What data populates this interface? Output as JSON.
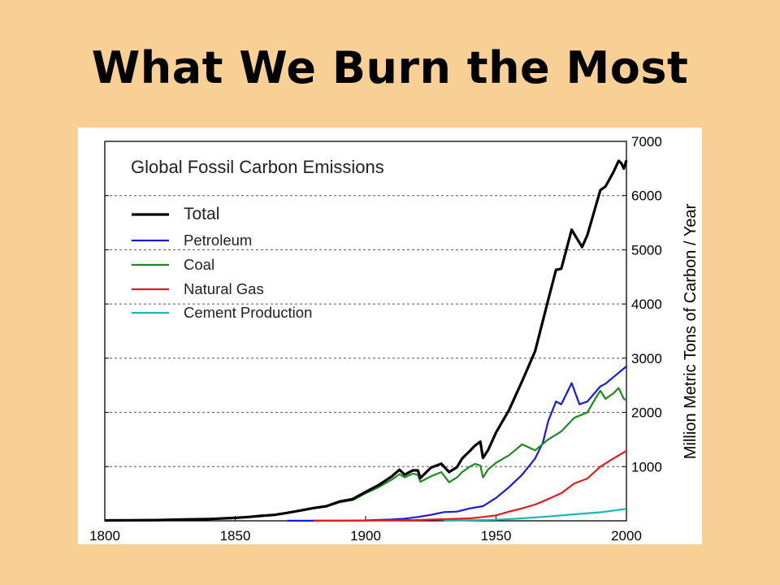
{
  "slide": {
    "title": "What We Burn the Most",
    "background_color": "#f8d095"
  },
  "chart_data": {
    "type": "line",
    "title": "Global Fossil Carbon Emissions",
    "xlabel": "",
    "ylabel": "Million Metric Tons of Carbon / Year",
    "xlim": [
      1800,
      2000
    ],
    "ylim": [
      0,
      7000
    ],
    "x_ticks": [
      1800,
      1850,
      1900,
      1950,
      2000
    ],
    "y_ticks": [
      1000,
      2000,
      3000,
      4000,
      5000,
      6000,
      7000
    ],
    "y_axis_side": "right",
    "grid": "horizontal dashed",
    "legend_position": "top-left",
    "series": [
      {
        "name": "Total",
        "color": "#000000",
        "points": [
          [
            1800,
            8
          ],
          [
            1810,
            10
          ],
          [
            1820,
            14
          ],
          [
            1830,
            24
          ],
          [
            1840,
            33
          ],
          [
            1850,
            54
          ],
          [
            1855,
            70
          ],
          [
            1860,
            91
          ],
          [
            1865,
            110
          ],
          [
            1870,
            147
          ],
          [
            1875,
            190
          ],
          [
            1880,
            236
          ],
          [
            1885,
            270
          ],
          [
            1890,
            356
          ],
          [
            1895,
            400
          ],
          [
            1900,
            534
          ],
          [
            1905,
            660
          ],
          [
            1910,
            819
          ],
          [
            1913,
            943
          ],
          [
            1915,
            850
          ],
          [
            1918,
            930
          ],
          [
            1920,
            932
          ],
          [
            1921,
            790
          ],
          [
            1925,
            980
          ],
          [
            1929,
            1053
          ],
          [
            1932,
            900
          ],
          [
            1935,
            990
          ],
          [
            1937,
            1150
          ],
          [
            1940,
            1290
          ],
          [
            1942,
            1390
          ],
          [
            1944,
            1460
          ],
          [
            1945,
            1160
          ],
          [
            1947,
            1310
          ],
          [
            1950,
            1630
          ],
          [
            1955,
            2043
          ],
          [
            1960,
            2577
          ],
          [
            1965,
            3130
          ],
          [
            1970,
            4076
          ],
          [
            1973,
            4630
          ],
          [
            1975,
            4650
          ],
          [
            1979,
            5370
          ],
          [
            1983,
            5050
          ],
          [
            1985,
            5270
          ],
          [
            1990,
            6100
          ],
          [
            1992,
            6170
          ],
          [
            1995,
            6430
          ],
          [
            1997,
            6640
          ],
          [
            1998,
            6600
          ],
          [
            1999,
            6500
          ],
          [
            2000,
            6650
          ]
        ]
      },
      {
        "name": "Petroleum",
        "color": "#1a1ad8",
        "points": [
          [
            1870,
            1
          ],
          [
            1890,
            3
          ],
          [
            1900,
            8
          ],
          [
            1910,
            25
          ],
          [
            1915,
            40
          ],
          [
            1920,
            70
          ],
          [
            1925,
            110
          ],
          [
            1930,
            160
          ],
          [
            1935,
            170
          ],
          [
            1940,
            230
          ],
          [
            1945,
            270
          ],
          [
            1950,
            423
          ],
          [
            1955,
            620
          ],
          [
            1960,
            850
          ],
          [
            1965,
            1150
          ],
          [
            1968,
            1450
          ],
          [
            1970,
            1838
          ],
          [
            1973,
            2200
          ],
          [
            1975,
            2150
          ],
          [
            1979,
            2540
          ],
          [
            1982,
            2150
          ],
          [
            1985,
            2200
          ],
          [
            1990,
            2480
          ],
          [
            1992,
            2530
          ],
          [
            1995,
            2650
          ],
          [
            2000,
            2850
          ]
        ]
      },
      {
        "name": "Coal",
        "color": "#1e8c1e",
        "points": [
          [
            1800,
            8
          ],
          [
            1810,
            10
          ],
          [
            1820,
            14
          ],
          [
            1830,
            24
          ],
          [
            1840,
            33
          ],
          [
            1850,
            54
          ],
          [
            1855,
            70
          ],
          [
            1860,
            91
          ],
          [
            1865,
            110
          ],
          [
            1870,
            146
          ],
          [
            1875,
            188
          ],
          [
            1880,
            230
          ],
          [
            1885,
            262
          ],
          [
            1890,
            340
          ],
          [
            1895,
            380
          ],
          [
            1900,
            508
          ],
          [
            1905,
            620
          ],
          [
            1910,
            760
          ],
          [
            1913,
            860
          ],
          [
            1915,
            800
          ],
          [
            1918,
            870
          ],
          [
            1920,
            850
          ],
          [
            1921,
            720
          ],
          [
            1925,
            820
          ],
          [
            1929,
            900
          ],
          [
            1932,
            710
          ],
          [
            1935,
            800
          ],
          [
            1937,
            900
          ],
          [
            1940,
            1000
          ],
          [
            1942,
            1050
          ],
          [
            1944,
            1020
          ],
          [
            1945,
            800
          ],
          [
            1947,
            950
          ],
          [
            1950,
            1070
          ],
          [
            1955,
            1210
          ],
          [
            1960,
            1410
          ],
          [
            1965,
            1300
          ],
          [
            1970,
            1500
          ],
          [
            1975,
            1650
          ],
          [
            1980,
            1900
          ],
          [
            1985,
            2000
          ],
          [
            1988,
            2250
          ],
          [
            1990,
            2400
          ],
          [
            1992,
            2250
          ],
          [
            1995,
            2350
          ],
          [
            1997,
            2450
          ],
          [
            1999,
            2250
          ],
          [
            2000,
            2230
          ]
        ]
      },
      {
        "name": "Natural Gas",
        "color": "#e01c1c",
        "points": [
          [
            1880,
            1
          ],
          [
            1900,
            5
          ],
          [
            1920,
            15
          ],
          [
            1930,
            30
          ],
          [
            1940,
            45
          ],
          [
            1945,
            70
          ],
          [
            1950,
            100
          ],
          [
            1955,
            170
          ],
          [
            1960,
            230
          ],
          [
            1965,
            300
          ],
          [
            1970,
            400
          ],
          [
            1975,
            510
          ],
          [
            1980,
            690
          ],
          [
            1985,
            780
          ],
          [
            1990,
            1000
          ],
          [
            1995,
            1150
          ],
          [
            2000,
            1290
          ]
        ]
      },
      {
        "name": "Cement Production",
        "color": "#1cb8b8",
        "points": [
          [
            1930,
            5
          ],
          [
            1940,
            10
          ],
          [
            1950,
            20
          ],
          [
            1960,
            45
          ],
          [
            1970,
            80
          ],
          [
            1980,
            120
          ],
          [
            1990,
            157
          ],
          [
            2000,
            220
          ]
        ]
      }
    ]
  }
}
